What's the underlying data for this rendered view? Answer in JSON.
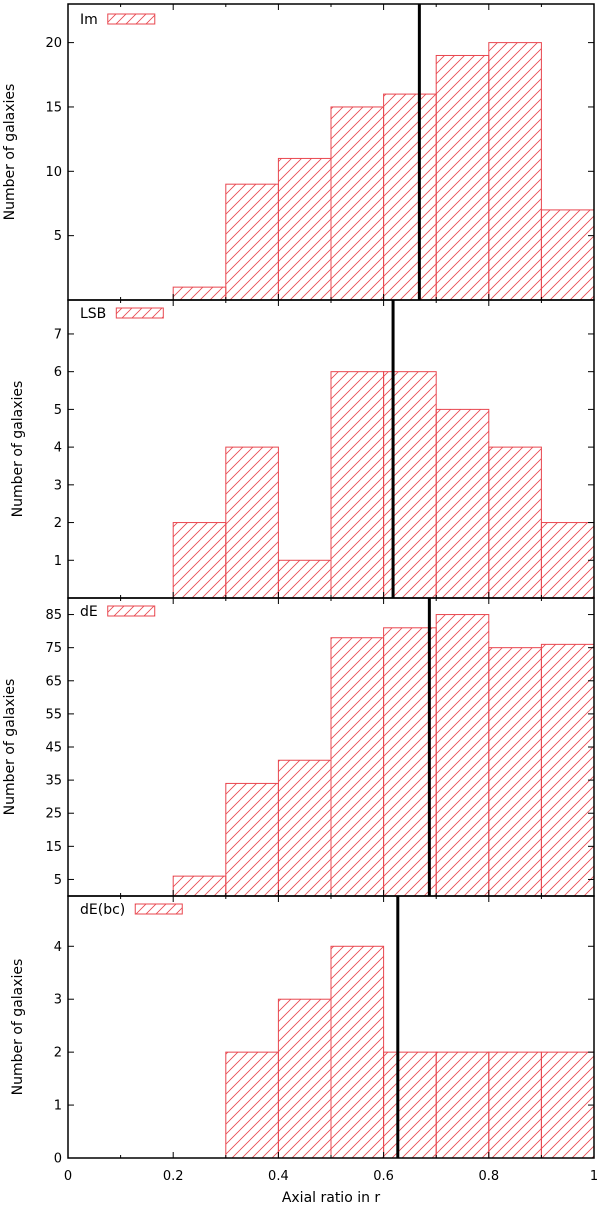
{
  "chart_data": {
    "type": "bar",
    "xlabel": "Axial ratio in r",
    "xlim": [
      0,
      1
    ],
    "xticks": [
      "0",
      "0.2",
      "0.4",
      "0.6",
      "0.8",
      "1"
    ],
    "bin_edges": [
      0.0,
      0.1,
      0.2,
      0.3,
      0.4,
      0.5,
      0.6,
      0.7,
      0.8,
      0.9,
      1.0
    ],
    "legend_position": "top-left",
    "panels": [
      {
        "name": "Im",
        "ylabel": "Number of galaxies",
        "ylim": [
          0,
          23
        ],
        "yticks": [
          5,
          10,
          15,
          20
        ],
        "values": [
          0,
          0,
          1,
          9,
          11,
          15,
          16,
          19,
          20,
          7
        ],
        "median_line_x": 0.668
      },
      {
        "name": "LSB",
        "ylabel": "Number of galaxies",
        "ylim": [
          0,
          7.9
        ],
        "yticks": [
          1,
          2,
          3,
          4,
          5,
          6,
          7
        ],
        "values": [
          0,
          0,
          2,
          4,
          1,
          6,
          6,
          5,
          4,
          2
        ],
        "median_line_x": 0.618
      },
      {
        "name": "dE",
        "ylabel": "Number of galaxies",
        "ylim": [
          0,
          90
        ],
        "yticks": [
          5,
          15,
          25,
          35,
          45,
          55,
          65,
          75,
          85
        ],
        "values": [
          0,
          0,
          6,
          34,
          41,
          78,
          81,
          85,
          75,
          76
        ],
        "median_line_x": 0.687
      },
      {
        "name": "dE(bc)",
        "ylabel": "Number of galaxies",
        "ylim": [
          0,
          4.95
        ],
        "yticks": [
          0,
          1,
          2,
          3,
          4
        ],
        "values": [
          0,
          0,
          0,
          2,
          3,
          4,
          2,
          2,
          2,
          2
        ],
        "median_line_x": 0.627
      }
    ]
  },
  "colors": {
    "bar_edge": "#e8474f",
    "frame": "#000000"
  }
}
